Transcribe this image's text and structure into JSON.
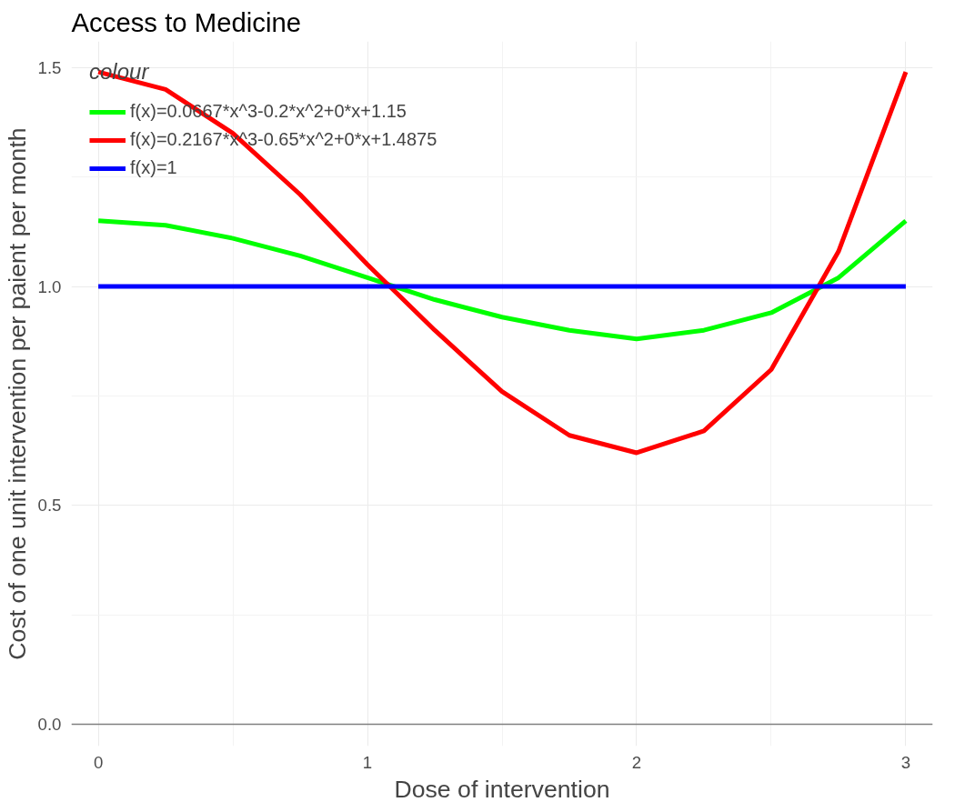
{
  "chart_data": {
    "type": "line",
    "title": "Access to Medicine",
    "xlabel": "Dose of intervention",
    "ylabel": "Cost of one unit intervention per paient per month",
    "legend_title": "colour",
    "legend": "top left",
    "grid": true,
    "line_style": "solid",
    "marker": "none",
    "xlim": [
      -0.1,
      3.1
    ],
    "ylim": [
      -0.05,
      1.56
    ],
    "xticks": [
      0,
      1,
      2,
      3
    ],
    "yticks": [
      {
        "value": 0,
        "label": "0.0"
      },
      {
        "value": 0.5,
        "label": "0.5"
      },
      {
        "value": 1,
        "label": "1.0"
      },
      {
        "value": 1.5,
        "label": "1.5"
      }
    ],
    "series": [
      {
        "name": "f(x)=0.0667*x^3-0.2*x^2+0*x+1.15",
        "color": "#00ff00",
        "x": [
          0,
          0.25,
          0.5,
          0.75,
          1,
          1.25,
          1.5,
          1.75,
          2,
          2.25,
          2.5,
          2.75,
          3
        ],
        "values": [
          1.15,
          1.14,
          1.11,
          1.07,
          1.02,
          0.97,
          0.93,
          0.9,
          0.88,
          0.9,
          0.94,
          1.02,
          1.15
        ]
      },
      {
        "name": "f(x)=0.2167*x^3-0.65*x^2+0*x+1.4875",
        "color": "#ff0000",
        "x": [
          0,
          0.25,
          0.5,
          0.75,
          1,
          1.25,
          1.5,
          1.75,
          2,
          2.25,
          2.5,
          2.75,
          3
        ],
        "values": [
          1.49,
          1.45,
          1.35,
          1.21,
          1.05,
          0.9,
          0.76,
          0.66,
          0.62,
          0.67,
          0.81,
          1.08,
          1.49
        ]
      },
      {
        "name": "f(x)=1",
        "color": "#0000ff",
        "x": [
          0,
          3
        ],
        "values": [
          1,
          1
        ]
      },
      {
        "color": "#7f7f7f",
        "x": [
          -0.1,
          3.1
        ],
        "values": [
          0,
          0
        ]
      }
    ]
  }
}
